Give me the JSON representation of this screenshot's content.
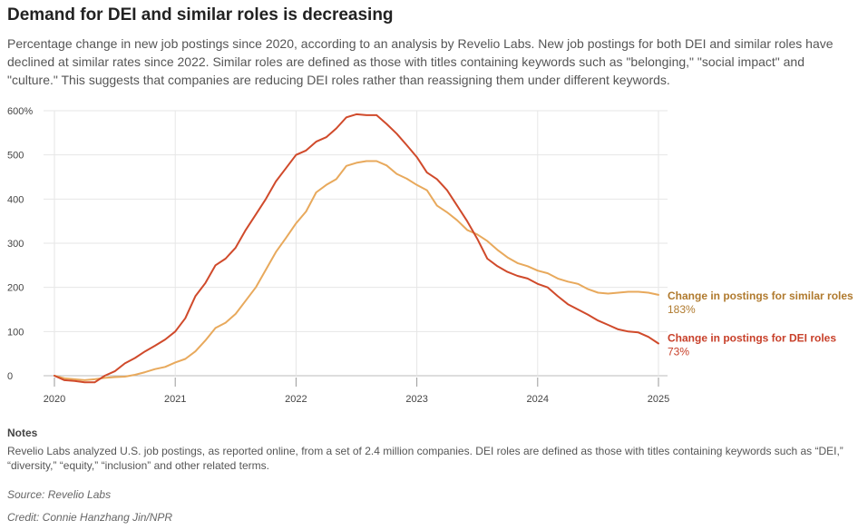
{
  "header": {
    "title": "Demand for DEI and similar roles is decreasing",
    "subtitle": "Percentage change in new job postings since 2020, according to an analysis by Revelio Labs. New job postings for both DEI and similar roles have declined at similar rates since 2022. Similar roles are defined as those with titles containing keywords such as \"belonging,\" \"social impact\" and \"culture.\" This suggests that companies are reducing DEI roles rather than reassigning them under different keywords."
  },
  "footer": {
    "notes_heading": "Notes",
    "notes_text": "Revelio Labs analyzed U.S. job postings, as reported online, from a set of 2.4 million companies. DEI roles are defined as those with titles containing keywords such as “DEI,” “diversity,” “equity,” “inclusion” and other related terms.",
    "source": "Source: Revelio Labs",
    "credit": "Credit: Connie Hanzhang Jin/NPR"
  },
  "chart_data": {
    "type": "line",
    "title": "",
    "xlabel": "",
    "ylabel": "",
    "xlim": [
      2020,
      2025
    ],
    "ylim": [
      0,
      600
    ],
    "y_ticks": [
      0,
      100,
      200,
      300,
      400,
      500,
      600
    ],
    "y_tick_labels": [
      "0",
      "100",
      "200",
      "300",
      "400",
      "500",
      "600%"
    ],
    "x_ticks": [
      2020,
      2021,
      2022,
      2023,
      2024,
      2025
    ],
    "x_tick_labels": [
      "2020",
      "2021",
      "2022",
      "2023",
      "2024",
      "2025"
    ],
    "grid": true,
    "legend": "end-labels",
    "series": [
      {
        "name": "Change in postings for similar roles",
        "end_label": "183%",
        "color": "#e8a95c",
        "label_color": "#b07a2e",
        "x": [
          2020.0,
          2020.083,
          2020.167,
          2020.25,
          2020.333,
          2020.417,
          2020.5,
          2020.583,
          2020.667,
          2020.75,
          2020.833,
          2020.917,
          2021.0,
          2021.083,
          2021.167,
          2021.25,
          2021.333,
          2021.417,
          2021.5,
          2021.583,
          2021.667,
          2021.75,
          2021.833,
          2021.917,
          2022.0,
          2022.083,
          2022.167,
          2022.25,
          2022.333,
          2022.417,
          2022.5,
          2022.583,
          2022.667,
          2022.75,
          2022.833,
          2022.917,
          2023.0,
          2023.083,
          2023.167,
          2023.25,
          2023.333,
          2023.417,
          2023.5,
          2023.583,
          2023.667,
          2023.75,
          2023.833,
          2023.917,
          2024.0,
          2024.083,
          2024.167,
          2024.25,
          2024.333,
          2024.417,
          2024.5,
          2024.583,
          2024.667,
          2024.75,
          2024.833,
          2024.917,
          2025.0
        ],
        "values": [
          0,
          -6,
          -8,
          -10,
          -8,
          -5,
          -3,
          -2,
          2,
          8,
          15,
          20,
          30,
          38,
          55,
          80,
          108,
          120,
          140,
          170,
          200,
          240,
          280,
          312,
          345,
          372,
          415,
          432,
          445,
          475,
          482,
          486,
          486,
          476,
          457,
          446,
          432,
          420,
          385,
          370,
          352,
          330,
          320,
          305,
          285,
          268,
          255,
          248,
          238,
          232,
          220,
          213,
          208,
          196,
          188,
          186,
          188,
          190,
          190,
          188,
          183
        ]
      },
      {
        "name": "Change in postings for DEI roles",
        "end_label": "73%",
        "color": "#d04a2b",
        "label_color": "#c8402a",
        "x": [
          2020.0,
          2020.083,
          2020.167,
          2020.25,
          2020.333,
          2020.417,
          2020.5,
          2020.583,
          2020.667,
          2020.75,
          2020.833,
          2020.917,
          2021.0,
          2021.083,
          2021.167,
          2021.25,
          2021.333,
          2021.417,
          2021.5,
          2021.583,
          2021.667,
          2021.75,
          2021.833,
          2021.917,
          2022.0,
          2022.083,
          2022.167,
          2022.25,
          2022.333,
          2022.417,
          2022.5,
          2022.583,
          2022.667,
          2022.75,
          2022.833,
          2022.917,
          2023.0,
          2023.083,
          2023.167,
          2023.25,
          2023.333,
          2023.417,
          2023.5,
          2023.583,
          2023.667,
          2023.75,
          2023.833,
          2023.917,
          2024.0,
          2024.083,
          2024.167,
          2024.25,
          2024.333,
          2024.417,
          2024.5,
          2024.583,
          2024.667,
          2024.75,
          2024.833,
          2024.917,
          2025.0
        ],
        "values": [
          0,
          -10,
          -12,
          -15,
          -15,
          0,
          10,
          28,
          40,
          55,
          68,
          82,
          100,
          130,
          180,
          210,
          250,
          265,
          290,
          330,
          365,
          400,
          440,
          470,
          500,
          510,
          530,
          540,
          560,
          585,
          592,
          590,
          590,
          570,
          548,
          522,
          495,
          460,
          445,
          420,
          385,
          350,
          310,
          265,
          248,
          235,
          226,
          220,
          208,
          200,
          180,
          162,
          150,
          138,
          125,
          115,
          105,
          100,
          98,
          88,
          73
        ]
      }
    ]
  }
}
